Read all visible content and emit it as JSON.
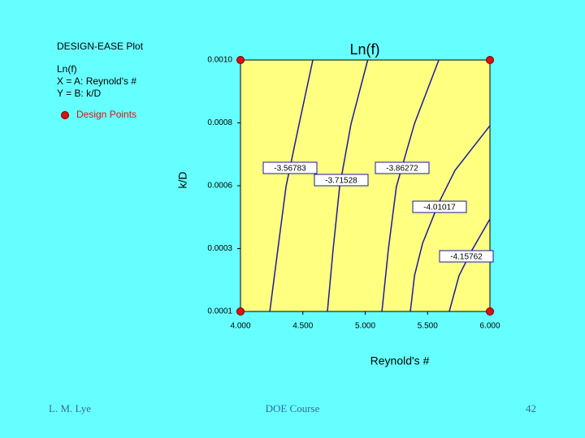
{
  "chart_data": {
    "type": "contour",
    "heading": "DESIGN-EASE Plot",
    "response": "Ln(f)",
    "x_factor": "X = A: Reynold's #",
    "y_factor": "Y = B: k/D",
    "points_label": "Design Points",
    "title": "Ln(f)",
    "x_label": "Reynold's #",
    "y_label": "k/D",
    "xlim": [
      4,
      6
    ],
    "ylim": [
      0.0001,
      0.001
    ],
    "xticks": [
      {
        "value": 4,
        "label": "4.000"
      },
      {
        "value": 4.5,
        "label": "4.500"
      },
      {
        "value": 5,
        "label": "5.000"
      },
      {
        "value": 5.5,
        "label": "5.500"
      },
      {
        "value": 6,
        "label": "6.000"
      }
    ],
    "yticks": [
      0.0001,
      {
        "value": 0.000325,
        "label": "0.0003"
      },
      {
        "value": 0.00055,
        "label": "0.0006"
      },
      {
        "value": 0.000775,
        "label": "0.0008"
      },
      {
        "value": 0.001,
        "label": "0.0010"
      }
    ],
    "background": "#ffff80",
    "line_color": "#1a1aa0",
    "point_color": "#e01010",
    "contours": [
      {
        "level": -3.56783,
        "x": [
          4.235,
          4.3,
          4.365,
          4.47,
          4.58
        ],
        "y": [
          0.0001,
          0.000324,
          0.000547,
          0.000771,
          0.001
        ]
      },
      {
        "level": -3.71528,
        "x": [
          4.697,
          4.743,
          4.795,
          4.886,
          5.02
        ],
        "y": [
          0.0001,
          0.000324,
          0.000547,
          0.000771,
          0.001
        ]
      },
      {
        "level": -3.86272,
        "x": [
          5.134,
          5.186,
          5.25,
          5.394,
          5.59
        ],
        "y": [
          0.0001,
          0.000324,
          0.000547,
          0.000771,
          0.001
        ]
      },
      {
        "level": -4.01017,
        "x": [
          5.362,
          5.395,
          5.46,
          5.59,
          5.72,
          6.0
        ],
        "y": [
          0.0001,
          0.000228,
          0.000344,
          0.000489,
          0.000605,
          0.000765
        ]
      },
      {
        "level": -4.15762,
        "x": [
          5.674,
          5.752,
          5.85,
          6.0
        ],
        "y": [
          0.0001,
          0.000228,
          0.000315,
          0.000431
        ]
      }
    ],
    "design_points": {
      "x": [
        4,
        4,
        6,
        6
      ],
      "y": [
        0.0001,
        0.001,
        0.0001,
        0.001
      ]
    }
  },
  "footer": {
    "author": "L. M. Lye",
    "course": "DOE Course",
    "page": "42"
  }
}
